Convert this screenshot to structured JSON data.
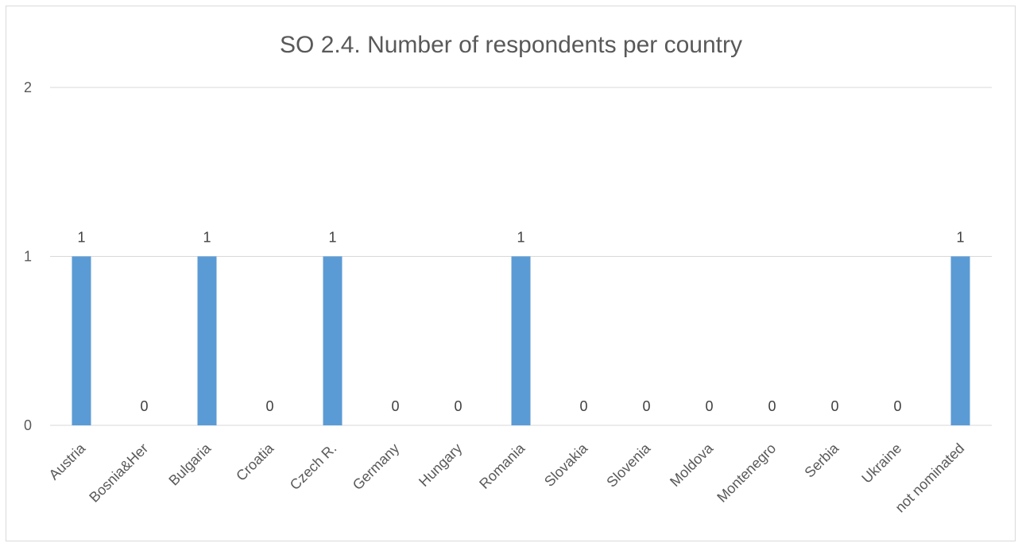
{
  "chart_data": {
    "type": "bar",
    "title": "SO 2.4. Number of respondents per country",
    "categories": [
      "Austria",
      "Bosnia&Her",
      "Bulgaria",
      "Croatia",
      "Czech R.",
      "Germany",
      "Hungary",
      "Romania",
      "Slovakia",
      "Slovenia",
      "Moldova",
      "Montenegro",
      "Serbia",
      "Ukraine",
      "not nominated"
    ],
    "values": [
      1,
      0,
      1,
      0,
      1,
      0,
      0,
      1,
      0,
      0,
      0,
      0,
      0,
      0,
      1
    ],
    "yticks": [
      "0",
      "1",
      "2"
    ],
    "ylim": [
      0,
      2
    ],
    "xlabel": "",
    "ylabel": "",
    "grid": true,
    "data_labels": true,
    "bar_color": "#5b9bd5"
  }
}
